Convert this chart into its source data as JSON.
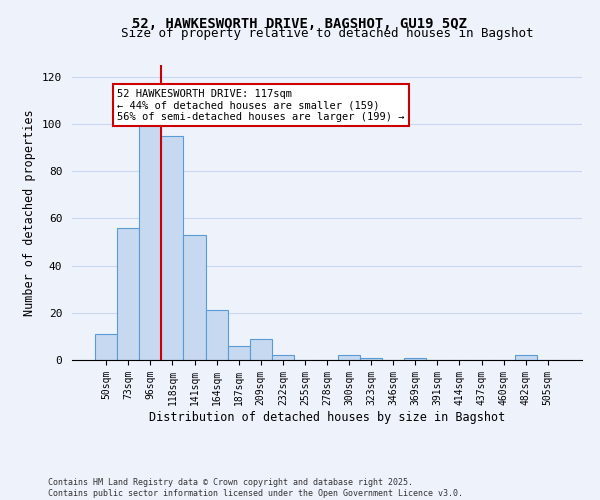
{
  "title": "52, HAWKESWORTH DRIVE, BAGSHOT, GU19 5QZ",
  "subtitle": "Size of property relative to detached houses in Bagshot",
  "xlabel": "Distribution of detached houses by size in Bagshot",
  "ylabel": "Number of detached properties",
  "footer_line1": "Contains HM Land Registry data © Crown copyright and database right 2025.",
  "footer_line2": "Contains public sector information licensed under the Open Government Licence v3.0.",
  "bar_labels": [
    "50sqm",
    "73sqm",
    "96sqm",
    "118sqm",
    "141sqm",
    "164sqm",
    "187sqm",
    "209sqm",
    "232sqm",
    "255sqm",
    "278sqm",
    "300sqm",
    "323sqm",
    "346sqm",
    "369sqm",
    "391sqm",
    "414sqm",
    "437sqm",
    "460sqm",
    "482sqm",
    "505sqm"
  ],
  "bar_values": [
    11,
    56,
    101,
    95,
    53,
    21,
    6,
    9,
    2,
    0,
    0,
    2,
    1,
    0,
    1,
    0,
    0,
    0,
    0,
    2,
    0
  ],
  "bar_color": "#c6d9f0",
  "bar_edge_color": "#5b9bd5",
  "ylim": [
    0,
    125
  ],
  "yticks": [
    0,
    20,
    40,
    60,
    80,
    100,
    120
  ],
  "vline_x": 2.5,
  "vline_color": "#cc0000",
  "annotation_text": "52 HAWKESWORTH DRIVE: 117sqm\n← 44% of detached houses are smaller (159)\n56% of semi-detached houses are larger (199) →",
  "annotation_box_color": "#ffffff",
  "annotation_box_edge": "#cc0000",
  "bg_color": "#eef2fb",
  "grid_color": "#c8d8f0"
}
